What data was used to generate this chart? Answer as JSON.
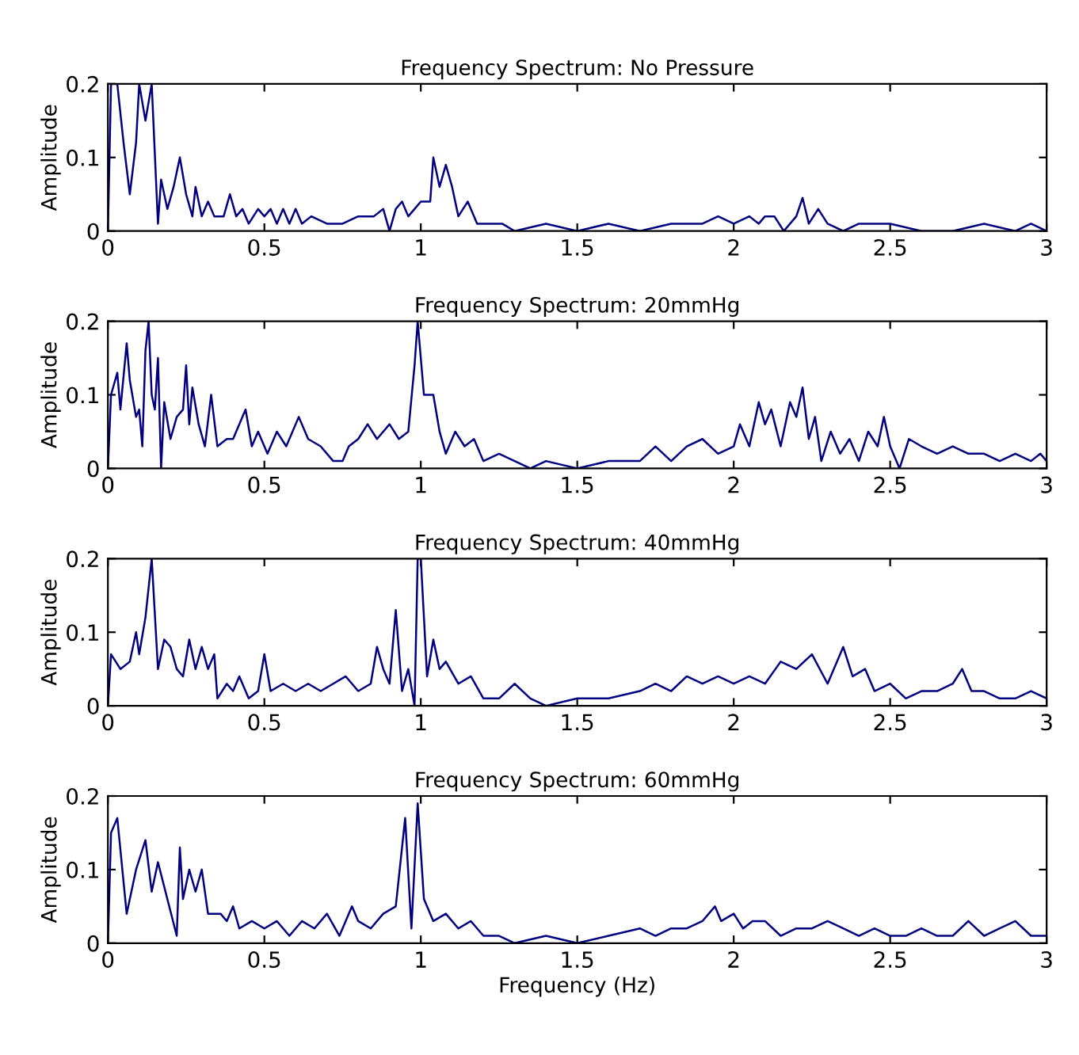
{
  "chart_data": [
    {
      "type": "line",
      "title": "Frequency Spectrum: No Pressure",
      "ylabel": "Amplitude",
      "color": "#000080",
      "xlim": [
        0,
        3
      ],
      "ylim": [
        0,
        0.2
      ],
      "xticks": [
        0,
        0.5,
        1,
        1.5,
        2,
        2.5,
        3
      ],
      "yticks": [
        0,
        0.1,
        0.2
      ],
      "x": [
        0,
        0.01,
        0.03,
        0.05,
        0.07,
        0.09,
        0.1,
        0.12,
        0.14,
        0.16,
        0.17,
        0.19,
        0.21,
        0.23,
        0.25,
        0.27,
        0.28,
        0.3,
        0.32,
        0.34,
        0.37,
        0.39,
        0.41,
        0.43,
        0.45,
        0.48,
        0.5,
        0.52,
        0.54,
        0.56,
        0.58,
        0.6,
        0.62,
        0.65,
        0.7,
        0.75,
        0.8,
        0.85,
        0.88,
        0.9,
        0.92,
        0.94,
        0.96,
        0.98,
        1.0,
        1.03,
        1.04,
        1.06,
        1.08,
        1.1,
        1.12,
        1.15,
        1.18,
        1.22,
        1.26,
        1.3,
        1.4,
        1.5,
        1.6,
        1.7,
        1.8,
        1.9,
        1.95,
        2.0,
        2.05,
        2.08,
        2.1,
        2.13,
        2.16,
        2.2,
        2.22,
        2.24,
        2.27,
        2.3,
        2.35,
        2.4,
        2.5,
        2.6,
        2.7,
        2.8,
        2.9,
        2.95,
        3.0
      ],
      "values": [
        0,
        0.2,
        0.2,
        0.12,
        0.05,
        0.12,
        0.2,
        0.15,
        0.2,
        0.01,
        0.07,
        0.03,
        0.06,
        0.1,
        0.05,
        0.02,
        0.06,
        0.02,
        0.04,
        0.02,
        0.02,
        0.05,
        0.02,
        0.03,
        0.01,
        0.03,
        0.02,
        0.03,
        0.01,
        0.03,
        0.01,
        0.03,
        0.01,
        0.02,
        0.01,
        0.01,
        0.02,
        0.02,
        0.03,
        0,
        0.03,
        0.04,
        0.02,
        0.03,
        0.04,
        0.04,
        0.1,
        0.06,
        0.09,
        0.06,
        0.02,
        0.04,
        0.01,
        0.01,
        0.01,
        0,
        0.01,
        0,
        0.01,
        0,
        0.01,
        0.01,
        0.02,
        0.01,
        0.02,
        0.01,
        0.02,
        0.02,
        0,
        0.02,
        0.045,
        0.01,
        0.03,
        0.01,
        0,
        0.01,
        0.01,
        0,
        0,
        0.01,
        0,
        0.01,
        0
      ]
    },
    {
      "type": "line",
      "title": "Frequency Spectrum: 20mmHg",
      "ylabel": "Amplitude",
      "color": "#000080",
      "xlim": [
        0,
        3
      ],
      "ylim": [
        0,
        0.2
      ],
      "xticks": [
        0,
        0.5,
        1,
        1.5,
        2,
        2.5,
        3
      ],
      "yticks": [
        0,
        0.1,
        0.2
      ],
      "x": [
        0,
        0.01,
        0.03,
        0.04,
        0.06,
        0.07,
        0.09,
        0.1,
        0.11,
        0.12,
        0.13,
        0.14,
        0.15,
        0.16,
        0.17,
        0.18,
        0.2,
        0.22,
        0.24,
        0.25,
        0.26,
        0.27,
        0.29,
        0.31,
        0.33,
        0.35,
        0.38,
        0.4,
        0.44,
        0.46,
        0.48,
        0.51,
        0.54,
        0.57,
        0.61,
        0.64,
        0.68,
        0.72,
        0.75,
        0.77,
        0.8,
        0.83,
        0.86,
        0.9,
        0.93,
        0.96,
        0.98,
        0.99,
        1.01,
        1.04,
        1.06,
        1.08,
        1.11,
        1.14,
        1.17,
        1.2,
        1.25,
        1.3,
        1.35,
        1.4,
        1.5,
        1.6,
        1.7,
        1.75,
        1.8,
        1.85,
        1.9,
        1.95,
        2.0,
        2.02,
        2.05,
        2.08,
        2.1,
        2.12,
        2.15,
        2.18,
        2.2,
        2.22,
        2.24,
        2.26,
        2.28,
        2.31,
        2.34,
        2.37,
        2.4,
        2.43,
        2.46,
        2.48,
        2.5,
        2.53,
        2.56,
        2.6,
        2.65,
        2.7,
        2.75,
        2.8,
        2.85,
        2.9,
        2.95,
        2.98,
        3.0
      ],
      "values": [
        0,
        0.1,
        0.13,
        0.08,
        0.17,
        0.12,
        0.07,
        0.08,
        0.03,
        0.16,
        0.2,
        0.1,
        0.08,
        0.15,
        0,
        0.09,
        0.04,
        0.07,
        0.08,
        0.14,
        0.06,
        0.11,
        0.06,
        0.03,
        0.1,
        0.03,
        0.04,
        0.04,
        0.08,
        0.03,
        0.05,
        0.02,
        0.05,
        0.03,
        0.07,
        0.04,
        0.03,
        0.01,
        0.01,
        0.03,
        0.04,
        0.06,
        0.04,
        0.06,
        0.04,
        0.05,
        0.14,
        0.2,
        0.1,
        0.1,
        0.05,
        0.02,
        0.05,
        0.03,
        0.04,
        0.01,
        0.02,
        0.01,
        0,
        0.01,
        0,
        0.01,
        0.01,
        0.03,
        0.01,
        0.03,
        0.04,
        0.02,
        0.03,
        0.06,
        0.03,
        0.09,
        0.06,
        0.08,
        0.03,
        0.09,
        0.07,
        0.11,
        0.04,
        0.07,
        0.01,
        0.05,
        0.02,
        0.04,
        0.01,
        0.05,
        0.03,
        0.07,
        0.03,
        0,
        0.04,
        0.03,
        0.02,
        0.03,
        0.02,
        0.02,
        0.01,
        0.02,
        0.01,
        0.02,
        0.01
      ]
    },
    {
      "type": "line",
      "title": "Frequency Spectrum: 40mmHg",
      "ylabel": "Amplitude",
      "color": "#000080",
      "xlim": [
        0,
        3
      ],
      "ylim": [
        0,
        0.2
      ],
      "xticks": [
        0,
        0.5,
        1,
        1.5,
        2,
        2.5,
        3
      ],
      "yticks": [
        0,
        0.1,
        0.2
      ],
      "x": [
        0,
        0.01,
        0.04,
        0.07,
        0.09,
        0.1,
        0.12,
        0.14,
        0.16,
        0.18,
        0.2,
        0.22,
        0.24,
        0.26,
        0.28,
        0.3,
        0.32,
        0.34,
        0.35,
        0.38,
        0.4,
        0.42,
        0.45,
        0.48,
        0.5,
        0.52,
        0.56,
        0.6,
        0.64,
        0.68,
        0.72,
        0.76,
        0.8,
        0.84,
        0.86,
        0.88,
        0.9,
        0.92,
        0.94,
        0.96,
        0.98,
        0.99,
        1.0,
        1.02,
        1.04,
        1.06,
        1.08,
        1.12,
        1.16,
        1.2,
        1.25,
        1.3,
        1.35,
        1.4,
        1.5,
        1.6,
        1.7,
        1.75,
        1.8,
        1.85,
        1.9,
        1.95,
        2.0,
        2.05,
        2.1,
        2.15,
        2.2,
        2.25,
        2.3,
        2.35,
        2.38,
        2.42,
        2.45,
        2.5,
        2.55,
        2.6,
        2.65,
        2.7,
        2.73,
        2.76,
        2.8,
        2.85,
        2.9,
        2.95,
        3.0
      ],
      "values": [
        0,
        0.07,
        0.05,
        0.06,
        0.1,
        0.07,
        0.12,
        0.2,
        0.05,
        0.09,
        0.08,
        0.05,
        0.04,
        0.09,
        0.05,
        0.08,
        0.05,
        0.07,
        0.01,
        0.03,
        0.02,
        0.04,
        0.01,
        0.02,
        0.07,
        0.02,
        0.03,
        0.02,
        0.03,
        0.02,
        0.03,
        0.04,
        0.02,
        0.03,
        0.08,
        0.05,
        0.03,
        0.13,
        0.02,
        0.05,
        0,
        0.2,
        0.2,
        0.04,
        0.09,
        0.05,
        0.06,
        0.03,
        0.04,
        0.01,
        0.01,
        0.03,
        0.01,
        0,
        0.01,
        0.01,
        0.02,
        0.03,
        0.02,
        0.04,
        0.03,
        0.04,
        0.03,
        0.04,
        0.03,
        0.06,
        0.05,
        0.07,
        0.03,
        0.08,
        0.04,
        0.05,
        0.02,
        0.03,
        0.01,
        0.02,
        0.02,
        0.03,
        0.05,
        0.02,
        0.02,
        0.01,
        0.01,
        0.02,
        0.01
      ]
    },
    {
      "type": "line",
      "title": "Frequency Spectrum: 60mmHg",
      "xlabel": "Frequency (Hz)",
      "ylabel": "Amplitude",
      "color": "#000080",
      "xlim": [
        0,
        3
      ],
      "ylim": [
        0,
        0.2
      ],
      "xticks": [
        0,
        0.5,
        1,
        1.5,
        2,
        2.5,
        3
      ],
      "yticks": [
        0,
        0.1,
        0.2
      ],
      "x": [
        0,
        0.01,
        0.03,
        0.06,
        0.09,
        0.12,
        0.14,
        0.16,
        0.19,
        0.22,
        0.23,
        0.24,
        0.26,
        0.28,
        0.3,
        0.32,
        0.36,
        0.38,
        0.4,
        0.42,
        0.46,
        0.5,
        0.54,
        0.58,
        0.62,
        0.66,
        0.7,
        0.74,
        0.78,
        0.8,
        0.84,
        0.88,
        0.92,
        0.95,
        0.97,
        0.99,
        1.01,
        1.04,
        1.08,
        1.12,
        1.16,
        1.2,
        1.25,
        1.3,
        1.4,
        1.5,
        1.6,
        1.7,
        1.75,
        1.8,
        1.85,
        1.9,
        1.94,
        1.96,
        2.0,
        2.03,
        2.06,
        2.1,
        2.15,
        2.2,
        2.25,
        2.3,
        2.35,
        2.4,
        2.45,
        2.5,
        2.55,
        2.6,
        2.65,
        2.7,
        2.75,
        2.8,
        2.85,
        2.9,
        2.95,
        3.0
      ],
      "values": [
        0,
        0.15,
        0.17,
        0.04,
        0.1,
        0.14,
        0.07,
        0.11,
        0.06,
        0.01,
        0.13,
        0.06,
        0.1,
        0.07,
        0.1,
        0.04,
        0.04,
        0.03,
        0.05,
        0.02,
        0.03,
        0.02,
        0.03,
        0.01,
        0.03,
        0.02,
        0.04,
        0.01,
        0.05,
        0.03,
        0.02,
        0.04,
        0.05,
        0.17,
        0.02,
        0.19,
        0.06,
        0.03,
        0.04,
        0.02,
        0.03,
        0.01,
        0.01,
        0,
        0.01,
        0,
        0.01,
        0.02,
        0.01,
        0.02,
        0.02,
        0.03,
        0.05,
        0.03,
        0.04,
        0.02,
        0.03,
        0.03,
        0.01,
        0.02,
        0.02,
        0.03,
        0.02,
        0.01,
        0.02,
        0.01,
        0.01,
        0.02,
        0.01,
        0.01,
        0.03,
        0.01,
        0.02,
        0.03,
        0.01,
        0.01
      ]
    }
  ]
}
